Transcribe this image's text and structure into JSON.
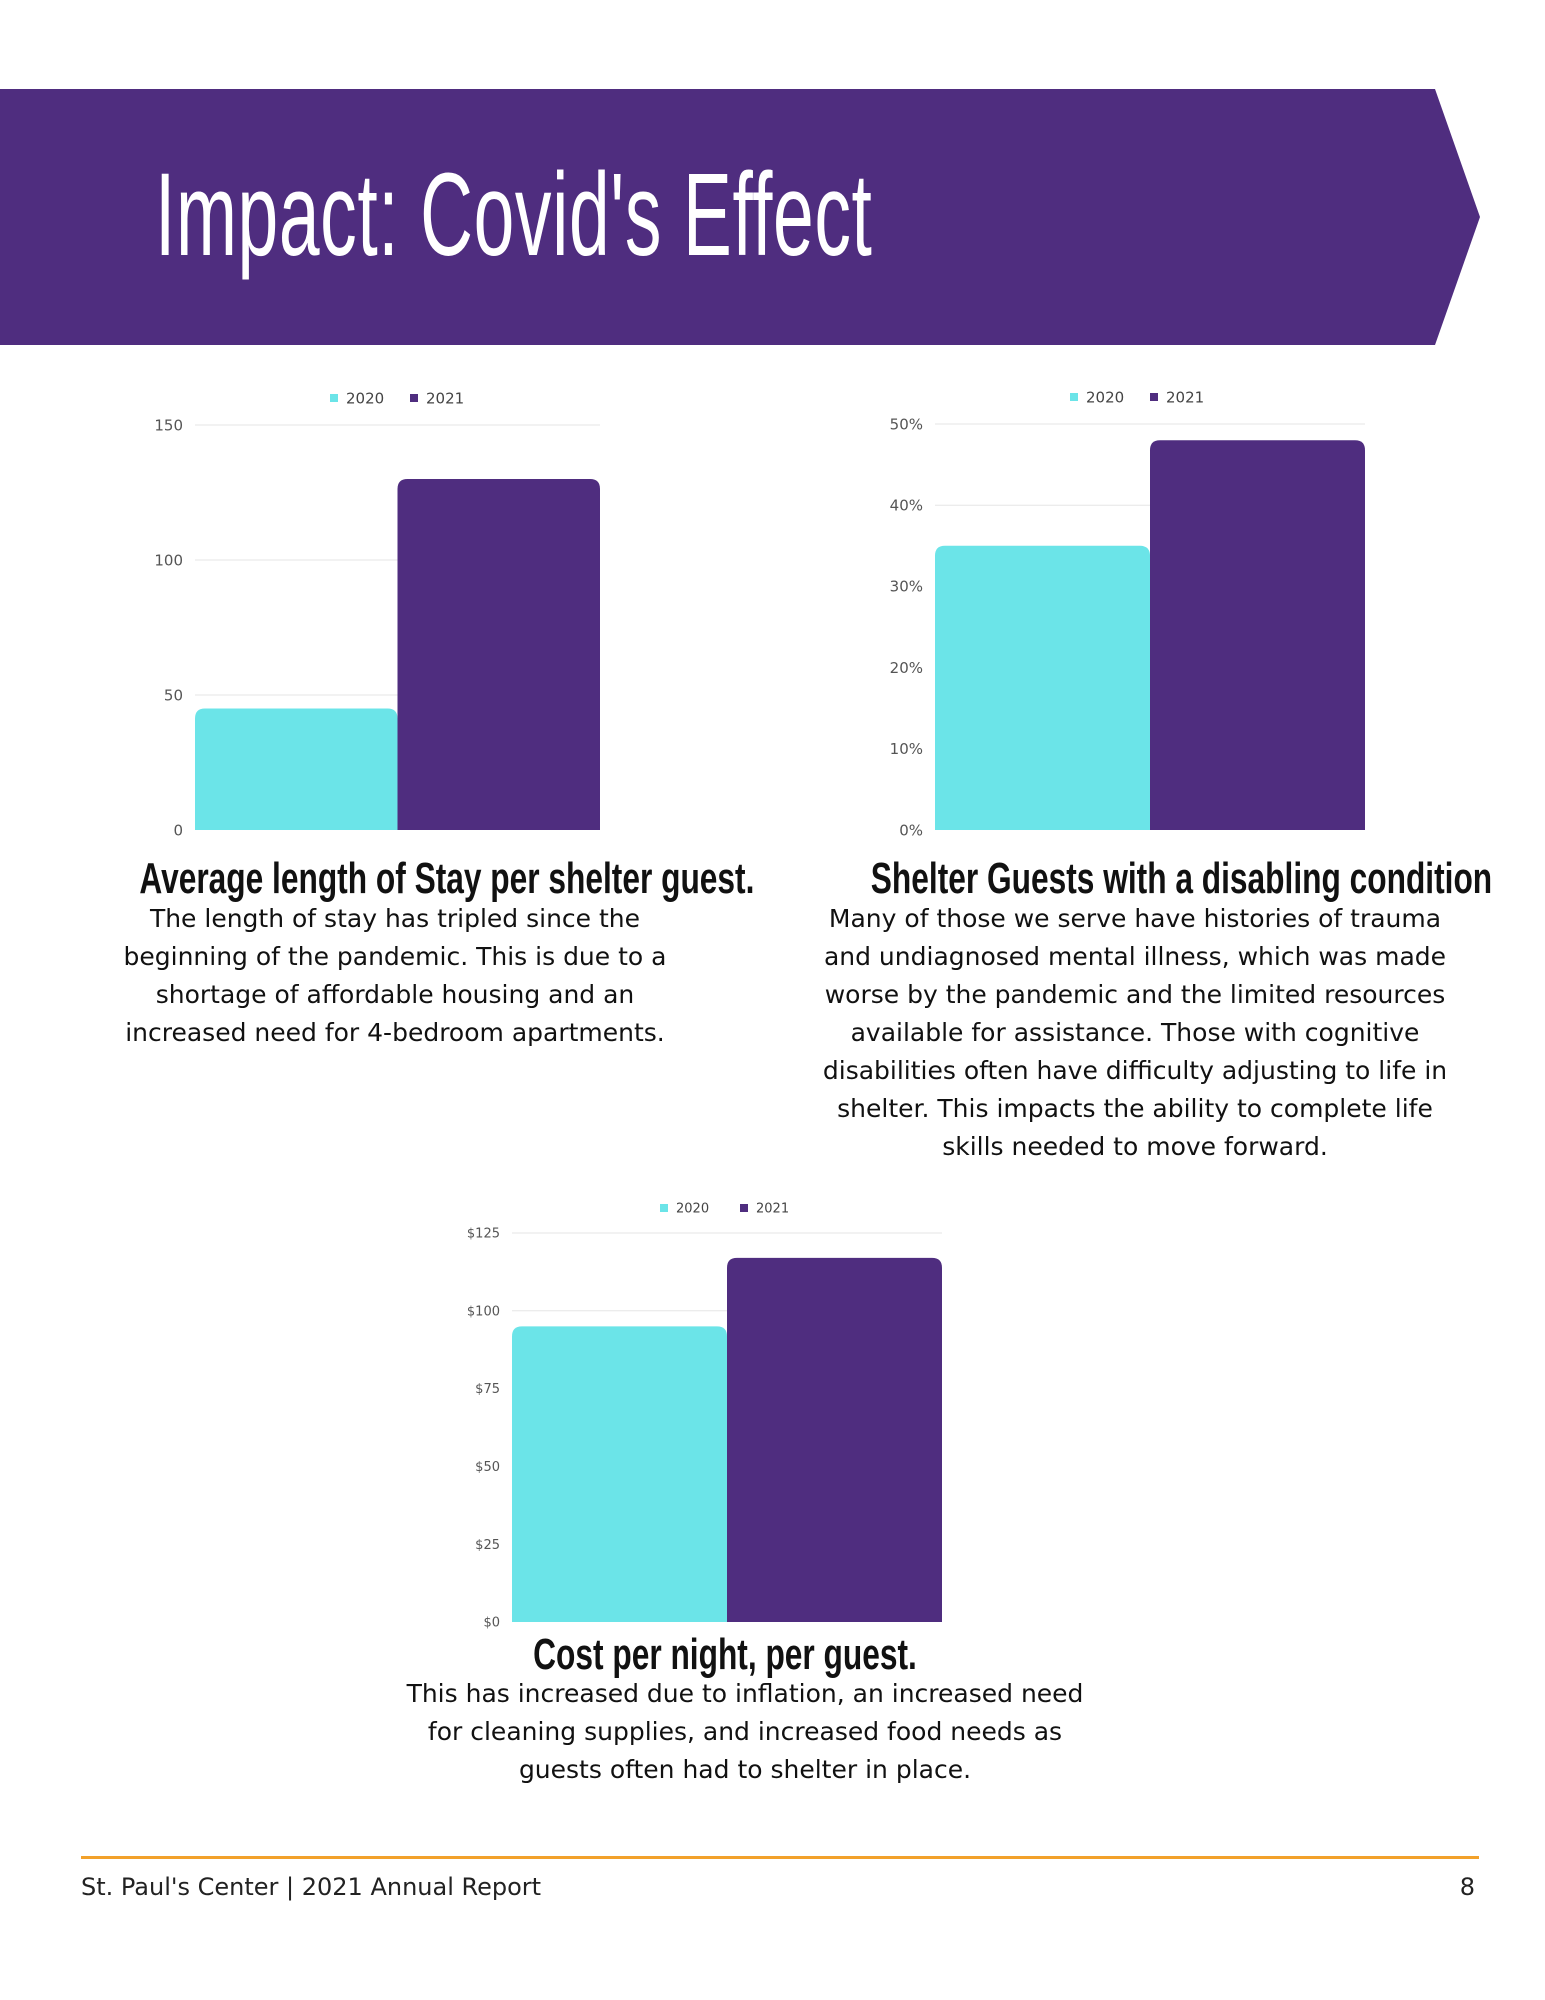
{
  "page_title": "Impact: Covid's Effect",
  "colors": {
    "banner": "#4f2d7f",
    "series_2020": "#6be4e8",
    "series_2021": "#4f2d7f",
    "rule": "#f2a12a",
    "grid": "#e6e6e6"
  },
  "chart_data": [
    {
      "type": "bar",
      "categories": [
        ""
      ],
      "series": [
        {
          "name": "2020",
          "values": [
            45
          ]
        },
        {
          "name": "2021",
          "values": [
            130
          ]
        }
      ],
      "yticks": [
        "0",
        "50",
        "100",
        "150"
      ],
      "ylim": [
        0,
        150
      ],
      "legend": "top-center",
      "grid": true,
      "title": "Average length of Stay per shelter  guest.",
      "description": "The length of stay has tripled since the beginning of the pandemic. This is due to a shortage of affordable housing and an increased need for 4-bedroom apartments."
    },
    {
      "type": "bar",
      "categories": [
        ""
      ],
      "series": [
        {
          "name": "2020",
          "values": [
            35
          ]
        },
        {
          "name": "2021",
          "values": [
            48
          ]
        }
      ],
      "yticks": [
        "0%",
        "10%",
        "20%",
        "30%",
        "40%",
        "50%"
      ],
      "ylim": [
        0,
        50
      ],
      "legend": "top-center",
      "grid": true,
      "title": "Shelter Guests with a disabling condition",
      "description": "Many of those we serve have histories of trauma and undiagnosed mental illness, which was made worse by the pandemic and the limited resources available for assistance. Those with cognitive disabilities often have difficulty adjusting to life in shelter. This impacts the ability to complete life skills needed to move forward."
    },
    {
      "type": "bar",
      "categories": [
        ""
      ],
      "series": [
        {
          "name": "2020",
          "values": [
            95
          ]
        },
        {
          "name": "2021",
          "values": [
            117
          ]
        }
      ],
      "yticks": [
        "$0",
        "$25",
        "$50",
        "$75",
        "$100",
        "$125"
      ],
      "ylim": [
        0,
        125
      ],
      "legend": "top-center",
      "grid": true,
      "title": "Cost per night, per guest.",
      "description": "This has increased due to inflation, an increased need for cleaning supplies, and increased food needs as guests often had to shelter in place."
    }
  ],
  "footer": {
    "left": "St. Paul's Center | 2021 Annual Report",
    "page_number": "8"
  }
}
